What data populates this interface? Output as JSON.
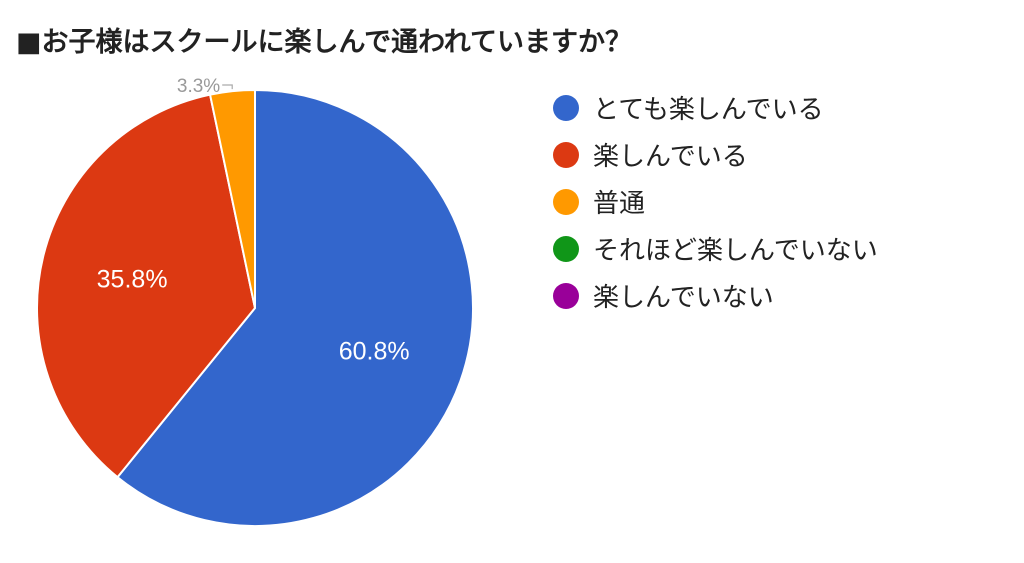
{
  "chart_data": {
    "type": "pie",
    "title": "■お子様はスクールに楽しんで通われていますか？",
    "legend_position": "right",
    "slices": [
      {
        "label": "とても楽しんでいる",
        "value": 60.8,
        "display": "60.8%",
        "color": "#3366cc"
      },
      {
        "label": "楽しんでいる",
        "value": 35.8,
        "display": "35.8%",
        "color": "#dc3912"
      },
      {
        "label": "普通",
        "value": 3.3,
        "display": "3.3%",
        "color": "#ff9900"
      },
      {
        "label": "それほど楽しんでいない",
        "value": 0,
        "display": "",
        "color": "#109618"
      },
      {
        "label": "楽しんでいない",
        "value": 0,
        "display": "",
        "color": "#990099"
      }
    ]
  }
}
